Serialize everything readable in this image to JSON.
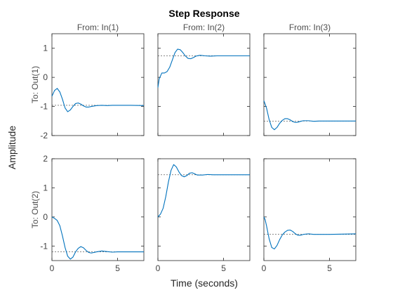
{
  "chart_data": {
    "type": "line",
    "title": "Step Response",
    "xlabel": "Time (seconds)",
    "ylabel": "Amplitude",
    "col_titles": [
      "From: In(1)",
      "From: In(2)",
      "From: In(3)"
    ],
    "row_titles": [
      "To: Out(1)",
      "To: Out(2)"
    ],
    "xlim": [
      0,
      7
    ],
    "xticks": [
      0,
      5
    ],
    "xtick_labels": [
      "0",
      "5"
    ],
    "rows": [
      {
        "ylim": [
          -2,
          1.5
        ],
        "yticks": [
          -2,
          -1,
          0,
          1
        ],
        "ytick_labels": [
          "-2",
          "-1",
          "0",
          "1"
        ],
        "panels": [
          {
            "final": -0.96,
            "x": [
              0,
              0.2,
              0.4,
              0.6,
              0.8,
              1.0,
              1.2,
              1.4,
              1.6,
              1.8,
              2.0,
              2.2,
              2.4,
              2.6,
              2.8,
              3.0,
              3.4,
              3.8,
              4.2,
              4.6,
              5.0,
              6.0,
              7.0
            ],
            "y": [
              -0.65,
              -0.45,
              -0.38,
              -0.5,
              -0.75,
              -1.05,
              -1.18,
              -1.12,
              -1.0,
              -0.9,
              -0.88,
              -0.92,
              -0.98,
              -1.02,
              -1.02,
              -1.0,
              -0.97,
              -0.96,
              -0.97,
              -0.96,
              -0.96,
              -0.96,
              -0.97
            ]
          },
          {
            "final": 0.74,
            "x": [
              0,
              0.1,
              0.3,
              0.5,
              0.7,
              0.9,
              1.1,
              1.3,
              1.5,
              1.7,
              1.9,
              2.1,
              2.3,
              2.5,
              2.7,
              2.9,
              3.2,
              3.6,
              4.0,
              4.5,
              5.0,
              6.0,
              7.0
            ],
            "y": [
              -0.35,
              -0.05,
              0.15,
              0.15,
              0.2,
              0.35,
              0.6,
              0.85,
              0.97,
              0.95,
              0.85,
              0.73,
              0.65,
              0.64,
              0.68,
              0.73,
              0.76,
              0.74,
              0.73,
              0.74,
              0.74,
              0.74,
              0.74
            ]
          },
          {
            "final": -1.5,
            "x": [
              0,
              0.2,
              0.4,
              0.6,
              0.8,
              1.0,
              1.2,
              1.4,
              1.6,
              1.8,
              2.0,
              2.2,
              2.4,
              2.6,
              2.8,
              3.0,
              3.4,
              3.8,
              4.2,
              5.0,
              6.0,
              7.0
            ],
            "y": [
              -0.8,
              -1.05,
              -1.45,
              -1.72,
              -1.8,
              -1.72,
              -1.58,
              -1.48,
              -1.42,
              -1.42,
              -1.46,
              -1.52,
              -1.55,
              -1.54,
              -1.51,
              -1.49,
              -1.49,
              -1.51,
              -1.5,
              -1.5,
              -1.5,
              -1.5
            ]
          }
        ]
      },
      {
        "ylim": [
          -1.5,
          2
        ],
        "yticks": [
          -1,
          0,
          1,
          2
        ],
        "ytick_labels": [
          "-1",
          "0",
          "1",
          "2"
        ],
        "panels": [
          {
            "final": -1.2,
            "x": [
              0,
              0.2,
              0.4,
              0.6,
              0.8,
              1.0,
              1.2,
              1.4,
              1.6,
              1.8,
              2.0,
              2.2,
              2.4,
              2.6,
              2.8,
              3.0,
              3.4,
              3.8,
              4.2,
              4.6,
              5.0,
              6.0,
              7.0
            ],
            "y": [
              0,
              -0.05,
              -0.12,
              -0.3,
              -0.65,
              -1.05,
              -1.35,
              -1.45,
              -1.38,
              -1.2,
              -1.08,
              -1.02,
              -1.06,
              -1.15,
              -1.22,
              -1.24,
              -1.2,
              -1.17,
              -1.19,
              -1.21,
              -1.2,
              -1.2,
              -1.2
            ]
          },
          {
            "final": 1.45,
            "x": [
              0,
              0.2,
              0.4,
              0.6,
              0.8,
              1.0,
              1.2,
              1.4,
              1.6,
              1.8,
              2.0,
              2.2,
              2.4,
              2.6,
              2.8,
              3.0,
              3.4,
              3.8,
              4.2,
              4.6,
              5.0,
              6.0,
              7.0
            ],
            "y": [
              0,
              0.1,
              0.3,
              0.7,
              1.2,
              1.6,
              1.8,
              1.72,
              1.55,
              1.42,
              1.38,
              1.42,
              1.5,
              1.52,
              1.48,
              1.44,
              1.44,
              1.46,
              1.45,
              1.45,
              1.45,
              1.45,
              1.45
            ]
          },
          {
            "final": -0.6,
            "x": [
              0,
              0.1,
              0.2,
              0.4,
              0.6,
              0.8,
              1.0,
              1.2,
              1.4,
              1.6,
              1.8,
              2.0,
              2.2,
              2.4,
              2.6,
              2.8,
              3.0,
              3.4,
              3.8,
              4.2,
              5.0,
              6.0,
              7.0
            ],
            "y": [
              0,
              -0.1,
              -0.3,
              -0.75,
              -1.05,
              -1.1,
              -0.98,
              -0.78,
              -0.62,
              -0.52,
              -0.46,
              -0.45,
              -0.5,
              -0.58,
              -0.63,
              -0.63,
              -0.6,
              -0.58,
              -0.6,
              -0.6,
              -0.6,
              -0.59,
              -0.58
            ]
          }
        ]
      }
    ],
    "colors": {
      "line": "#0072bd",
      "final_value": "#404040",
      "axes": "#262626",
      "background": "#ffffff"
    },
    "grid": false
  }
}
